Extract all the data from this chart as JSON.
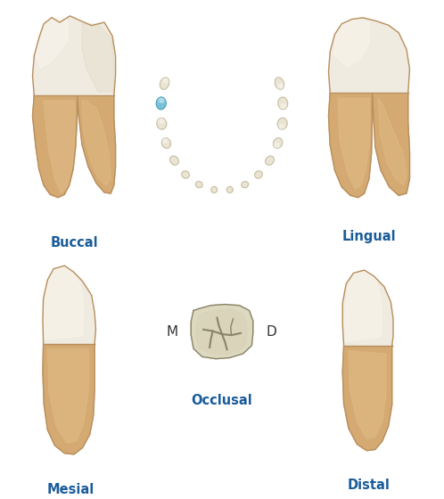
{
  "background_color": "#ffffff",
  "label_color": "#1a5c9a",
  "label_fontsize": 10.5,
  "labels": {
    "buccal": "Buccal",
    "lingual": "Lingual",
    "mesial": "Mesial",
    "distal": "Distal",
    "occlusal": "Occlusal",
    "M": "M",
    "D": "D"
  },
  "crown_color": "#f0ebe0",
  "crown_light": "#f8f5ec",
  "crown_dark": "#d8d0b8",
  "root_color": "#d4aa72",
  "root_light": "#e0bc88",
  "root_dark": "#b8905a",
  "outline_color": "#b89060",
  "occlusal_fill": "#ddd8c0",
  "occlusal_groove": "#8a8468",
  "arch_tooth_fill": "#e8e2d0",
  "arch_tooth_outline": "#c0b898",
  "highlight_blue": "#6bbcd4"
}
